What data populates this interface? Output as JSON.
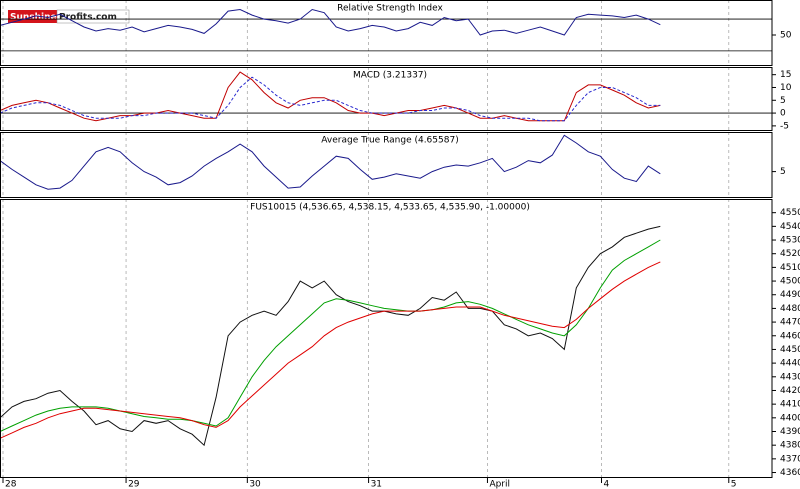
{
  "logo": {
    "left": "Sunshine",
    "right": "Profits.com"
  },
  "chart_data": [
    {
      "type": "line",
      "title": "Relative Strength Index",
      "xlim": [
        0,
        64.3
      ],
      "ylim": [
        11,
        94
      ],
      "yticks": [
        50
      ],
      "levels": [
        30,
        70
      ],
      "series": [
        {
          "color": "#1a1a8c",
          "values": [
            62,
            66,
            70,
            74,
            72,
            76,
            68,
            60,
            55,
            58,
            56,
            60,
            54,
            58,
            62,
            60,
            57,
            52,
            64,
            80,
            82,
            75,
            70,
            68,
            65,
            70,
            82,
            78,
            60,
            55,
            58,
            62,
            60,
            55,
            58,
            66,
            62,
            72,
            68,
            70,
            50,
            55,
            56,
            52,
            56,
            60,
            55,
            50,
            72,
            76,
            75,
            74,
            72,
            75,
            70,
            63
          ]
        }
      ]
    },
    {
      "type": "line",
      "title": "MACD (3.21337)",
      "xlim": [
        0,
        64.3
      ],
      "ylim": [
        -7,
        18
      ],
      "yticks": [
        15,
        10,
        5,
        0,
        -5
      ],
      "levels": [
        0
      ],
      "series": [
        {
          "color": "#c00000",
          "values": [
            1,
            3,
            4,
            5,
            4,
            2,
            0,
            -2,
            -3,
            -2,
            -1,
            -1,
            0,
            0,
            1,
            0,
            -1,
            -2,
            -2,
            10,
            16,
            13,
            8,
            4,
            2,
            5,
            6,
            6,
            4,
            1,
            0,
            0,
            -1,
            0,
            1,
            1,
            2,
            3,
            2,
            0,
            -2,
            -2,
            -1,
            -2,
            -3,
            -3,
            -3,
            -3,
            8,
            11,
            11,
            9,
            7,
            4,
            2,
            3
          ]
        },
        {
          "color": "#2a2ad0",
          "dash": true,
          "values": [
            0,
            2,
            3,
            4,
            4,
            3,
            1,
            -1,
            -2,
            -2,
            -2,
            -1,
            -1,
            0,
            0,
            0,
            0,
            -1,
            -2,
            3,
            10,
            14,
            11,
            7,
            4,
            3,
            4,
            5,
            5,
            3,
            1,
            0,
            0,
            0,
            0,
            1,
            1,
            2,
            2,
            1,
            -1,
            -2,
            -2,
            -2,
            -2,
            -3,
            -3,
            -3,
            3,
            8,
            10,
            10,
            8,
            6,
            3,
            3
          ]
        }
      ]
    },
    {
      "type": "line",
      "title": "Average True Range (4.65587)",
      "xlim": [
        0,
        64.3
      ],
      "ylim": [
        2.6,
        8.6
      ],
      "yticks": [
        5
      ],
      "series": [
        {
          "color": "#1a1a8c",
          "values": [
            6,
            5.2,
            4.5,
            3.8,
            3.4,
            3.5,
            4.2,
            5.5,
            6.8,
            7.2,
            6.8,
            5.8,
            5,
            4.5,
            3.8,
            4,
            4.6,
            5.5,
            6.2,
            6.8,
            7.5,
            6.8,
            5.5,
            4.5,
            3.5,
            3.6,
            4.6,
            5.5,
            6.4,
            6.2,
            5.2,
            4.3,
            4.5,
            4.8,
            4.6,
            4.4,
            5,
            5.4,
            5.6,
            5.5,
            5.8,
            6.2,
            5,
            5.4,
            6,
            5.8,
            6.5,
            8.3,
            7.6,
            6.8,
            6.4,
            5.2,
            4.4,
            4.1,
            5.5,
            4.8
          ]
        }
      ]
    },
    {
      "type": "line",
      "title": "FUS10015 (4,536.65, 4,538.15, 4,533.65, 4,535.90, -1.00000)",
      "xlim": [
        0,
        64.3
      ],
      "ylim": [
        4356,
        4560
      ],
      "yticks": [
        4550,
        4540,
        4530,
        4520,
        4510,
        4500,
        4490,
        4480,
        4470,
        4460,
        4450,
        4440,
        4430,
        4420,
        4410,
        4400,
        4390,
        4380,
        4370,
        4360
      ],
      "xticks": [
        {
          "value": 0.25,
          "label": "28"
        },
        {
          "value": 10.5,
          "label": "29"
        },
        {
          "value": 20.6,
          "label": "30"
        },
        {
          "value": 30.7,
          "label": "31"
        },
        {
          "value": 40.6,
          "label": "April"
        },
        {
          "value": 50.1,
          "label": "4"
        },
        {
          "value": 60.7,
          "label": "5"
        }
      ],
      "series": [
        {
          "color": "#111111",
          "values": [
            4400,
            4408,
            4412,
            4414,
            4418,
            4420,
            4412,
            4405,
            4395,
            4398,
            4392,
            4390,
            4398,
            4396,
            4398,
            4392,
            4388,
            4380,
            4415,
            4460,
            4470,
            4475,
            4478,
            4475,
            4485,
            4500,
            4495,
            4500,
            4490,
            4485,
            4482,
            4478,
            4478,
            4476,
            4475,
            4480,
            4488,
            4486,
            4492,
            4480,
            4480,
            4478,
            4468,
            4465,
            4460,
            4462,
            4458,
            4450,
            4495,
            4510,
            4520,
            4525,
            4532,
            4535,
            4538,
            4540
          ]
        },
        {
          "color": "#00a000",
          "values": [
            4390,
            4394,
            4398,
            4402,
            4405,
            4407,
            4408,
            4408,
            4408,
            4407,
            4405,
            4403,
            4401,
            4400,
            4399,
            4399,
            4398,
            4396,
            4394,
            4400,
            4415,
            4430,
            4442,
            4452,
            4460,
            4468,
            4476,
            4484,
            4487,
            4486,
            4484,
            4482,
            4480,
            4479,
            4478,
            4478,
            4479,
            4481,
            4484,
            4485,
            4483,
            4480,
            4476,
            4472,
            4468,
            4465,
            4462,
            4460,
            4468,
            4480,
            4495,
            4508,
            4515,
            4520,
            4525,
            4530
          ]
        },
        {
          "color": "#e00000",
          "values": [
            4385,
            4389,
            4393,
            4396,
            4400,
            4403,
            4405,
            4407,
            4407,
            4406,
            4405,
            4404,
            4403,
            4402,
            4401,
            4400,
            4398,
            4395,
            4393,
            4398,
            4408,
            4416,
            4424,
            4432,
            4440,
            4446,
            4452,
            4460,
            4466,
            4470,
            4473,
            4476,
            4478,
            4478,
            4478,
            4478,
            4479,
            4480,
            4481,
            4481,
            4481,
            4478,
            4475,
            4473,
            4471,
            4469,
            4467,
            4466,
            4472,
            4480,
            4487,
            4494,
            4500,
            4505,
            4510,
            4514
          ]
        }
      ]
    }
  ]
}
